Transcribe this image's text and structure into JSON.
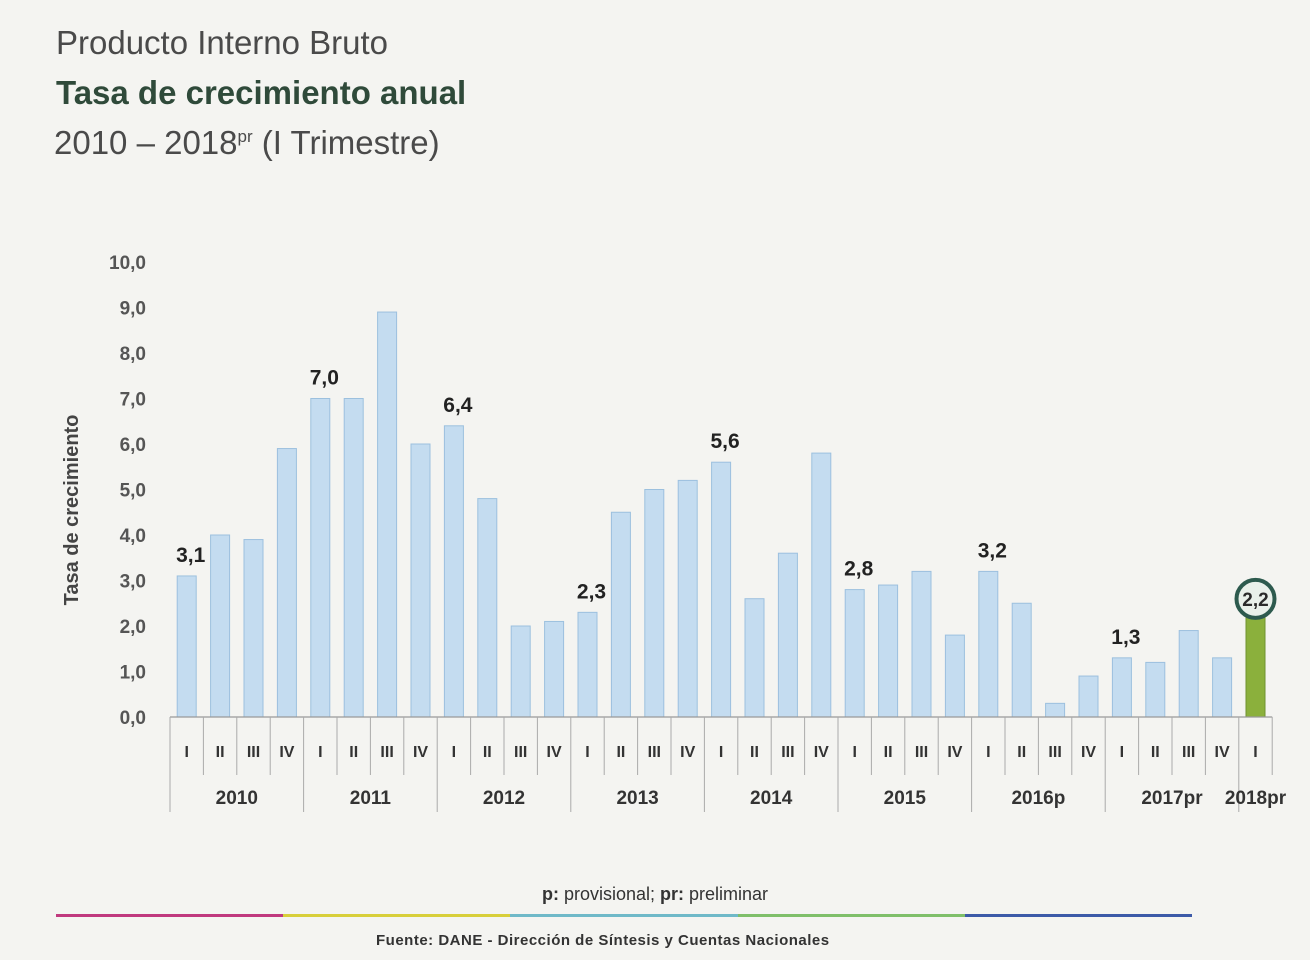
{
  "header": {
    "line1": "Producto Interno Bruto",
    "line2": "Tasa de crecimiento anual",
    "line3_main": "2010 – 2018",
    "line3_sup": "pr",
    "line3_tail": " (I Trimestre)"
  },
  "footer": {
    "note_p": "p:",
    "note_p_text": " provisional; ",
    "note_pr": "pr:",
    "note_pr_text": " preliminar",
    "source": "Fuente: DANE - Dirección de Síntesis y Cuentas Nacionales"
  },
  "colors": {
    "bar": "#c4dcf0",
    "bar_edge": "#9cc0de",
    "highlight_bar": "#8bb03c",
    "highlight_ring": "#2d5a4e",
    "rule_segments": [
      "#c0397e",
      "#d8cf3a",
      "#6fb9c8",
      "#7fbf6a",
      "#3c5aa8"
    ]
  },
  "chart_data": {
    "type": "bar",
    "title": "",
    "ylabel": "Tasa de crecimiento",
    "xlabel": "",
    "ylim": [
      0,
      10
    ],
    "y_ticks": [
      "0,0",
      "1,0",
      "2,0",
      "3,0",
      "4,0",
      "5,0",
      "6,0",
      "7,0",
      "8,0",
      "9,0",
      "10,0"
    ],
    "grid": false,
    "categories": [
      "I",
      "II",
      "III",
      "IV",
      "I",
      "II",
      "III",
      "IV",
      "I",
      "II",
      "III",
      "IV",
      "I",
      "II",
      "III",
      "IV",
      "I",
      "II",
      "III",
      "IV",
      "I",
      "II",
      "III",
      "IV",
      "I",
      "II",
      "III",
      "IV",
      "I",
      "II",
      "III",
      "IV",
      "I"
    ],
    "years": [
      {
        "label": "2010",
        "count": 4
      },
      {
        "label": "2011",
        "count": 4
      },
      {
        "label": "2012",
        "count": 4
      },
      {
        "label": "2013",
        "count": 4
      },
      {
        "label": "2014",
        "count": 4
      },
      {
        "label": "2015",
        "count": 4
      },
      {
        "label": "2016p",
        "count": 4
      },
      {
        "label": "2017pr",
        "count": 4
      },
      {
        "label": "2018pr",
        "count": 1
      }
    ],
    "values": [
      3.1,
      4.0,
      3.9,
      5.9,
      7.0,
      7.0,
      8.9,
      6.0,
      6.4,
      4.8,
      2.0,
      2.1,
      2.3,
      4.5,
      5.0,
      5.2,
      5.6,
      2.6,
      3.6,
      5.8,
      2.8,
      2.9,
      3.2,
      1.8,
      3.2,
      2.5,
      0.3,
      0.9,
      1.3,
      1.2,
      1.9,
      1.3,
      2.2
    ],
    "data_labels": [
      {
        "index": 0,
        "text": "3,1"
      },
      {
        "index": 4,
        "text": "7,0"
      },
      {
        "index": 8,
        "text": "6,4"
      },
      {
        "index": 12,
        "text": "2,3"
      },
      {
        "index": 16,
        "text": "5,6"
      },
      {
        "index": 20,
        "text": "2,8"
      },
      {
        "index": 24,
        "text": "3,2"
      },
      {
        "index": 28,
        "text": "1,3"
      },
      {
        "index": 32,
        "text": "2,2",
        "highlight": true
      }
    ]
  }
}
